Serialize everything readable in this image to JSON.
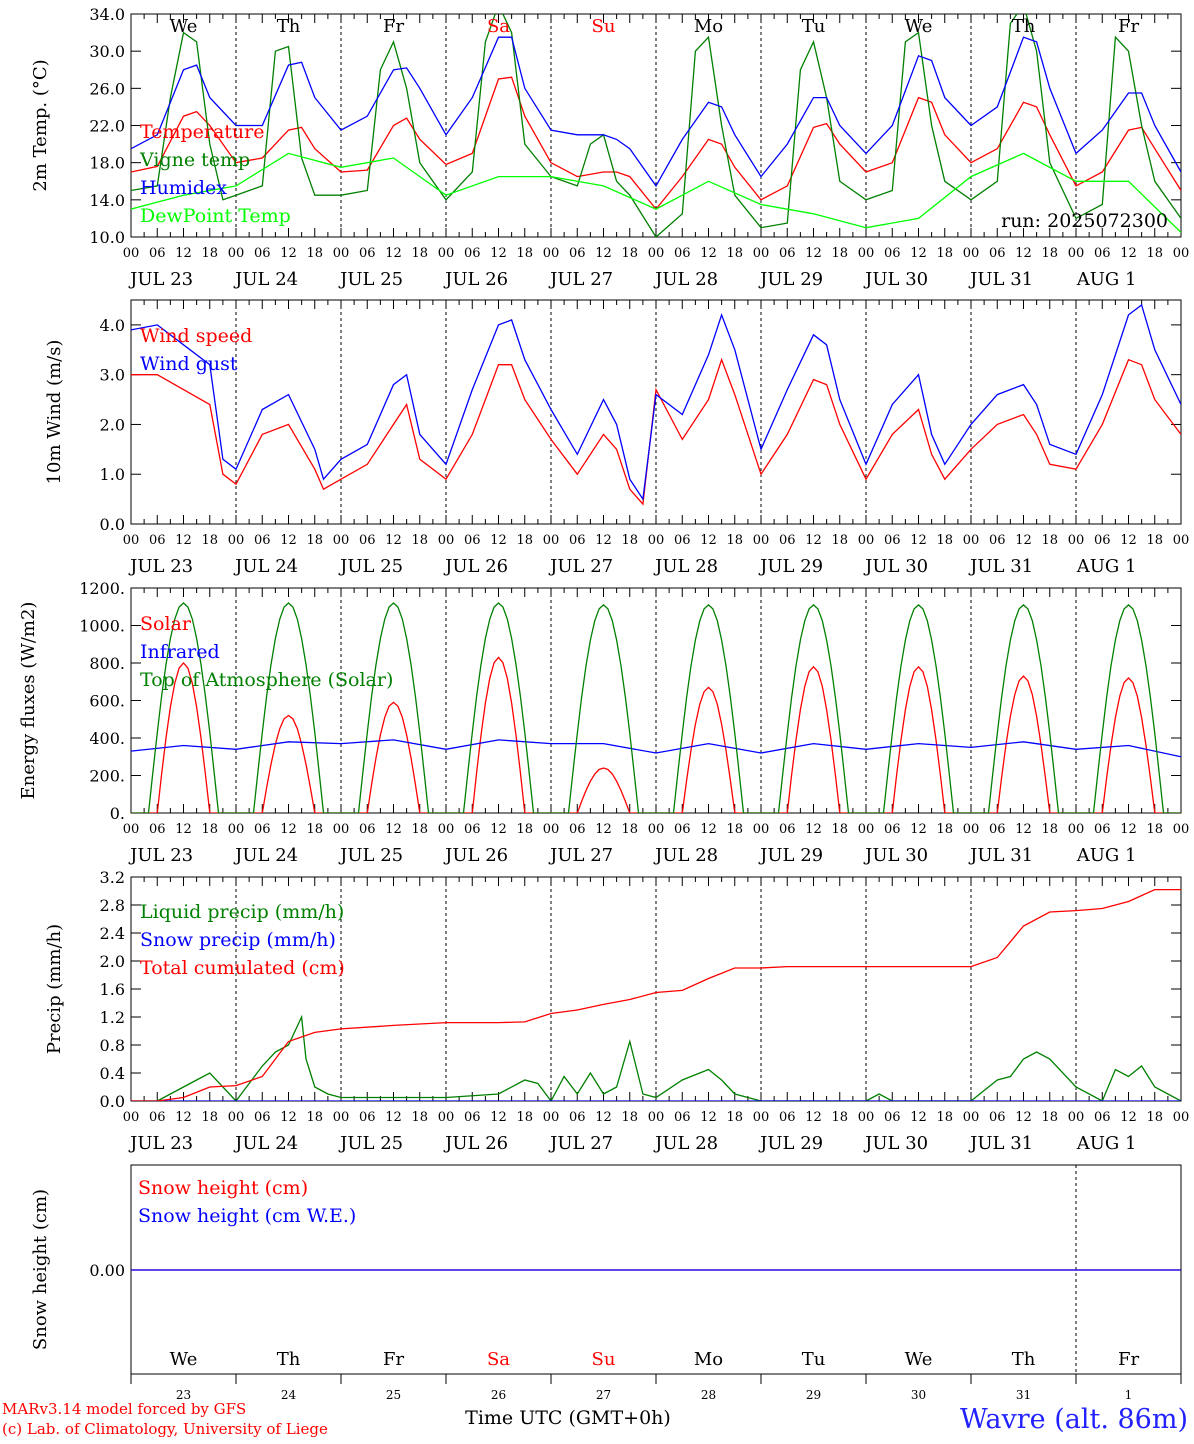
{
  "header": {
    "days": [
      {
        "label": "We",
        "color": "#000000"
      },
      {
        "label": "Th",
        "color": "#000000"
      },
      {
        "label": "Fr",
        "color": "#000000"
      },
      {
        "label": "Sa",
        "color": "#ff0000"
      },
      {
        "label": "Su",
        "color": "#ff0000"
      },
      {
        "label": "Mo",
        "color": "#000000"
      },
      {
        "label": "Tu",
        "color": "#000000"
      },
      {
        "label": "We",
        "color": "#000000"
      },
      {
        "label": "Th",
        "color": "#000000"
      },
      {
        "label": "Fr",
        "color": "#000000"
      }
    ],
    "date_labels": [
      "JUL 23",
      "JUL 24",
      "JUL 25",
      "JUL 26",
      "JUL 27",
      "JUL 28",
      "JUL 29",
      "JUL 30",
      "JUL 31",
      "AUG  1"
    ],
    "hour_ticks": [
      "00",
      "06",
      "12",
      "18"
    ],
    "final_tick": "00",
    "day_numbers": [
      "23",
      "24",
      "25",
      "26",
      "27",
      "28",
      "29",
      "30",
      "31",
      "1"
    ]
  },
  "footer": {
    "model_line": "MARv3.14 model forced by GFS",
    "lab_line": "(c) Lab. of Climatology, University of Liege",
    "axis_label": "Time UTC (GMT+0h)",
    "site": "Wavre (alt. 86m)"
  },
  "chart_data": [
    {
      "type": "line",
      "ylabel": "2m Temp. (°C)",
      "ylim": [
        10,
        34
      ],
      "yticks": [
        "10.0",
        "14.0",
        "18.0",
        "22.0",
        "26.0",
        "30.0",
        "34.0"
      ],
      "annotation": "run: 2025072300",
      "x_unit": "hours since 2025-07-23 00 UTC",
      "series": [
        {
          "name": "Temperature",
          "color": "#ff0000",
          "x": [
            0,
            6,
            12,
            15,
            18,
            24,
            30,
            36,
            39,
            42,
            48,
            54,
            60,
            63,
            66,
            72,
            78,
            84,
            87,
            90,
            96,
            102,
            108,
            111,
            114,
            120,
            126,
            132,
            135,
            138,
            144,
            150,
            156,
            159,
            162,
            168,
            174,
            180,
            183,
            186,
            192,
            198,
            204,
            207,
            210,
            216,
            222,
            228,
            231,
            234,
            240
          ],
          "y": [
            17.0,
            17.6,
            23.0,
            23.5,
            22.0,
            18.0,
            18.5,
            21.5,
            21.8,
            19.5,
            17.0,
            17.2,
            22.0,
            22.8,
            20.5,
            17.8,
            19.0,
            27.0,
            27.2,
            23.0,
            18.0,
            16.5,
            17.0,
            17.0,
            16.5,
            13.0,
            16.5,
            20.5,
            20.0,
            17.5,
            14.0,
            15.5,
            21.8,
            22.2,
            20.0,
            17.0,
            18.0,
            25.0,
            24.5,
            21.0,
            18.0,
            19.5,
            24.5,
            24.0,
            21.0,
            15.5,
            17.0,
            21.5,
            21.8,
            19.5,
            15.0
          ]
        },
        {
          "name": "Vigne temp",
          "color": "#008000",
          "x": [
            0,
            6,
            9,
            12,
            15,
            18,
            21,
            24,
            30,
            33,
            36,
            39,
            42,
            48,
            54,
            57,
            60,
            63,
            66,
            72,
            78,
            81,
            84,
            87,
            90,
            96,
            102,
            105,
            108,
            111,
            114,
            120,
            126,
            129,
            132,
            135,
            138,
            144,
            150,
            153,
            156,
            159,
            162,
            168,
            174,
            177,
            180,
            183,
            186,
            192,
            198,
            201,
            204,
            207,
            210,
            216,
            222,
            225,
            228,
            231,
            234,
            240
          ],
          "y": [
            15.0,
            15.5,
            25.0,
            32.0,
            31.0,
            20.0,
            14.0,
            14.5,
            15.5,
            30.0,
            30.5,
            18.5,
            14.5,
            14.5,
            15.0,
            28.0,
            31.0,
            26.0,
            18.0,
            14.0,
            17.0,
            31.0,
            35.0,
            32.0,
            20.0,
            16.5,
            15.5,
            20.0,
            21.0,
            16.0,
            14.5,
            10.0,
            12.5,
            30.0,
            31.5,
            22.0,
            14.5,
            11.0,
            11.5,
            28.0,
            31.0,
            25.0,
            16.0,
            14.0,
            15.0,
            31.0,
            32.0,
            22.0,
            16.0,
            14.0,
            16.0,
            33.0,
            35.0,
            30.0,
            18.0,
            12.0,
            13.5,
            31.5,
            30.0,
            22.0,
            16.0,
            12.0
          ]
        },
        {
          "name": "Humidex",
          "color": "#0000ff",
          "x": [
            0,
            6,
            12,
            15,
            18,
            24,
            30,
            36,
            39,
            42,
            48,
            54,
            60,
            63,
            66,
            72,
            78,
            84,
            87,
            90,
            96,
            102,
            108,
            111,
            114,
            120,
            126,
            132,
            135,
            138,
            144,
            150,
            156,
            159,
            162,
            168,
            174,
            180,
            183,
            186,
            192,
            198,
            204,
            207,
            210,
            216,
            222,
            228,
            231,
            234,
            240
          ],
          "y": [
            19.5,
            21.0,
            28.0,
            28.5,
            25.0,
            22.0,
            22.0,
            28.5,
            28.8,
            25.0,
            21.5,
            23.0,
            28.0,
            28.2,
            26.0,
            21.0,
            25.0,
            31.5,
            31.5,
            26.0,
            21.5,
            21.0,
            21.0,
            20.5,
            19.5,
            15.5,
            20.5,
            24.5,
            24.0,
            21.0,
            16.5,
            20.0,
            25.0,
            25.0,
            22.0,
            19.0,
            22.0,
            29.5,
            29.0,
            25.0,
            22.0,
            24.0,
            31.5,
            31.0,
            26.0,
            19.0,
            21.5,
            25.5,
            25.5,
            22.0,
            17.0
          ]
        },
        {
          "name": "DewPoint Temp",
          "color": "#00ff00",
          "x": [
            0,
            12,
            24,
            36,
            48,
            60,
            72,
            84,
            96,
            108,
            120,
            132,
            144,
            156,
            168,
            180,
            192,
            204,
            216,
            228,
            240
          ],
          "y": [
            13.0,
            14.5,
            15.5,
            19.0,
            17.5,
            18.5,
            14.5,
            16.5,
            16.5,
            15.5,
            13.0,
            16.0,
            13.5,
            12.5,
            11.0,
            12.0,
            16.5,
            19.0,
            16.0,
            16.0,
            10.5
          ]
        }
      ]
    },
    {
      "type": "line",
      "ylabel": "10m Wind (m/s)",
      "ylim": [
        0,
        4.5
      ],
      "yticks": [
        "0.0",
        "1.0",
        "2.0",
        "3.0",
        "4.0"
      ],
      "x_unit": "hours since 2025-07-23 00 UTC",
      "series": [
        {
          "name": "Wind speed",
          "color": "#ff0000",
          "x": [
            0,
            6,
            12,
            18,
            21,
            24,
            30,
            36,
            42,
            44,
            48,
            54,
            60,
            63,
            66,
            72,
            78,
            84,
            87,
            90,
            96,
            102,
            108,
            111,
            114,
            117,
            120,
            126,
            132,
            135,
            138,
            144,
            150,
            156,
            159,
            162,
            168,
            174,
            180,
            183,
            186,
            192,
            198,
            204,
            207,
            210,
            216,
            222,
            228,
            231,
            234,
            240
          ],
          "y": [
            3.0,
            3.0,
            2.7,
            2.4,
            1.0,
            0.8,
            1.8,
            2.0,
            1.1,
            0.7,
            0.9,
            1.2,
            2.0,
            2.4,
            1.3,
            0.9,
            1.8,
            3.2,
            3.2,
            2.5,
            1.7,
            1.0,
            1.8,
            1.5,
            0.7,
            0.4,
            2.7,
            1.7,
            2.5,
            3.3,
            2.6,
            1.0,
            1.8,
            2.9,
            2.8,
            2.0,
            0.9,
            1.8,
            2.3,
            1.4,
            0.9,
            1.5,
            2.0,
            2.2,
            1.8,
            1.2,
            1.1,
            2.0,
            3.3,
            3.2,
            2.5,
            1.8
          ]
        },
        {
          "name": "Wind gust",
          "color": "#0000ff",
          "x": [
            0,
            6,
            12,
            18,
            21,
            24,
            30,
            36,
            42,
            44,
            48,
            54,
            60,
            63,
            66,
            72,
            78,
            84,
            87,
            90,
            96,
            102,
            108,
            111,
            114,
            117,
            120,
            126,
            132,
            135,
            138,
            144,
            150,
            156,
            159,
            162,
            168,
            174,
            180,
            183,
            186,
            192,
            198,
            204,
            207,
            210,
            216,
            222,
            228,
            231,
            234,
            240
          ],
          "y": [
            3.9,
            4.0,
            3.6,
            3.2,
            1.3,
            1.1,
            2.3,
            2.6,
            1.5,
            0.9,
            1.3,
            1.6,
            2.8,
            3.0,
            1.8,
            1.2,
            2.7,
            4.0,
            4.1,
            3.3,
            2.3,
            1.4,
            2.5,
            2.0,
            0.9,
            0.5,
            2.6,
            2.2,
            3.4,
            4.2,
            3.5,
            1.5,
            2.7,
            3.8,
            3.6,
            2.5,
            1.2,
            2.4,
            3.0,
            1.8,
            1.2,
            2.0,
            2.6,
            2.8,
            2.4,
            1.6,
            1.4,
            2.6,
            4.2,
            4.4,
            3.5,
            2.4
          ]
        }
      ]
    },
    {
      "type": "line",
      "ylabel": "Energy fluxes (W/m2)",
      "ylim": [
        0,
        1200
      ],
      "yticks": [
        "0.",
        "200.",
        "400.",
        "600.",
        "800.",
        "1000.",
        "1200."
      ],
      "x_unit": "hours since 2025-07-23 00 UTC",
      "series": [
        {
          "name": "Solar",
          "color": "#ff0000",
          "daily_peaks": [
            800,
            520,
            590,
            830,
            240,
            670,
            780,
            780,
            730,
            720
          ]
        },
        {
          "name": "Infrared",
          "color": "#0000ff",
          "x": [
            0,
            12,
            24,
            36,
            48,
            60,
            72,
            84,
            96,
            108,
            120,
            132,
            144,
            156,
            168,
            180,
            192,
            204,
            216,
            228,
            240
          ],
          "y": [
            330,
            360,
            340,
            380,
            370,
            390,
            340,
            390,
            370,
            370,
            320,
            370,
            320,
            370,
            340,
            370,
            350,
            380,
            340,
            360,
            300
          ]
        },
        {
          "name": "Top of Atmosphere (Solar)",
          "color": "#008000",
          "daily_peaks": [
            1120,
            1120,
            1120,
            1120,
            1110,
            1110,
            1110,
            1110,
            1110,
            1110
          ]
        }
      ]
    },
    {
      "type": "line",
      "ylabel": "Precip (mm/h)",
      "ylim": [
        0,
        3.2
      ],
      "yticks": [
        "0.0",
        "0.4",
        "0.8",
        "1.2",
        "1.6",
        "2.0",
        "2.4",
        "2.8",
        "3.2"
      ],
      "x_unit": "hours since 2025-07-23 00 UTC",
      "series": [
        {
          "name": "Liquid precip (mm/h)",
          "color": "#008000",
          "x": [
            0,
            6,
            9,
            12,
            15,
            18,
            21,
            24,
            30,
            33,
            36,
            39,
            40,
            42,
            45,
            48,
            60,
            72,
            84,
            90,
            93,
            96,
            99,
            102,
            105,
            108,
            111,
            114,
            117,
            120,
            126,
            132,
            135,
            138,
            144,
            168,
            171,
            174,
            192,
            198,
            201,
            204,
            207,
            210,
            216,
            222,
            225,
            228,
            231,
            234,
            240
          ],
          "y": [
            0,
            0,
            0.1,
            0.2,
            0.3,
            0.4,
            0.2,
            0,
            0.5,
            0.7,
            0.8,
            1.2,
            0.6,
            0.2,
            0.1,
            0.05,
            0.05,
            0.05,
            0.1,
            0.3,
            0.25,
            0,
            0.35,
            0.1,
            0.4,
            0.1,
            0.2,
            0.85,
            0.1,
            0.05,
            0.3,
            0.45,
            0.3,
            0.1,
            0,
            0,
            0.1,
            0,
            0,
            0.3,
            0.35,
            0.6,
            0.7,
            0.6,
            0.2,
            0,
            0.45,
            0.35,
            0.5,
            0.2,
            0
          ]
        },
        {
          "name": "Snow precip (mm/h)",
          "color": "#0000ff",
          "x": [
            0,
            240
          ],
          "y": [
            0,
            0
          ]
        },
        {
          "name": "Total cumulated (cm)",
          "color": "#ff0000",
          "x": [
            0,
            6,
            12,
            18,
            24,
            30,
            36,
            42,
            48,
            60,
            72,
            84,
            90,
            96,
            102,
            108,
            114,
            120,
            126,
            132,
            138,
            144,
            150,
            156,
            168,
            192,
            198,
            204,
            210,
            216,
            222,
            228,
            234,
            240
          ],
          "y": [
            0,
            0,
            0.05,
            0.2,
            0.22,
            0.35,
            0.85,
            0.98,
            1.03,
            1.08,
            1.12,
            1.12,
            1.13,
            1.25,
            1.3,
            1.38,
            1.45,
            1.55,
            1.58,
            1.75,
            1.9,
            1.9,
            1.92,
            1.92,
            1.92,
            1.92,
            2.05,
            2.5,
            2.7,
            2.72,
            2.75,
            2.85,
            3.02,
            3.02
          ]
        }
      ]
    },
    {
      "type": "line",
      "ylabel": "Snow height (cm)",
      "yticks": [
        "0.00"
      ],
      "x_unit": "hours since 2025-07-23 00 UTC",
      "series": [
        {
          "name": "Snow height (cm)",
          "color": "#ff0000",
          "x": [
            0,
            240
          ],
          "y": [
            0,
            0
          ]
        },
        {
          "name": "Snow height (cm W.E.)",
          "color": "#0000ff",
          "x": [
            0,
            240
          ],
          "y": [
            0,
            0
          ]
        }
      ]
    }
  ]
}
